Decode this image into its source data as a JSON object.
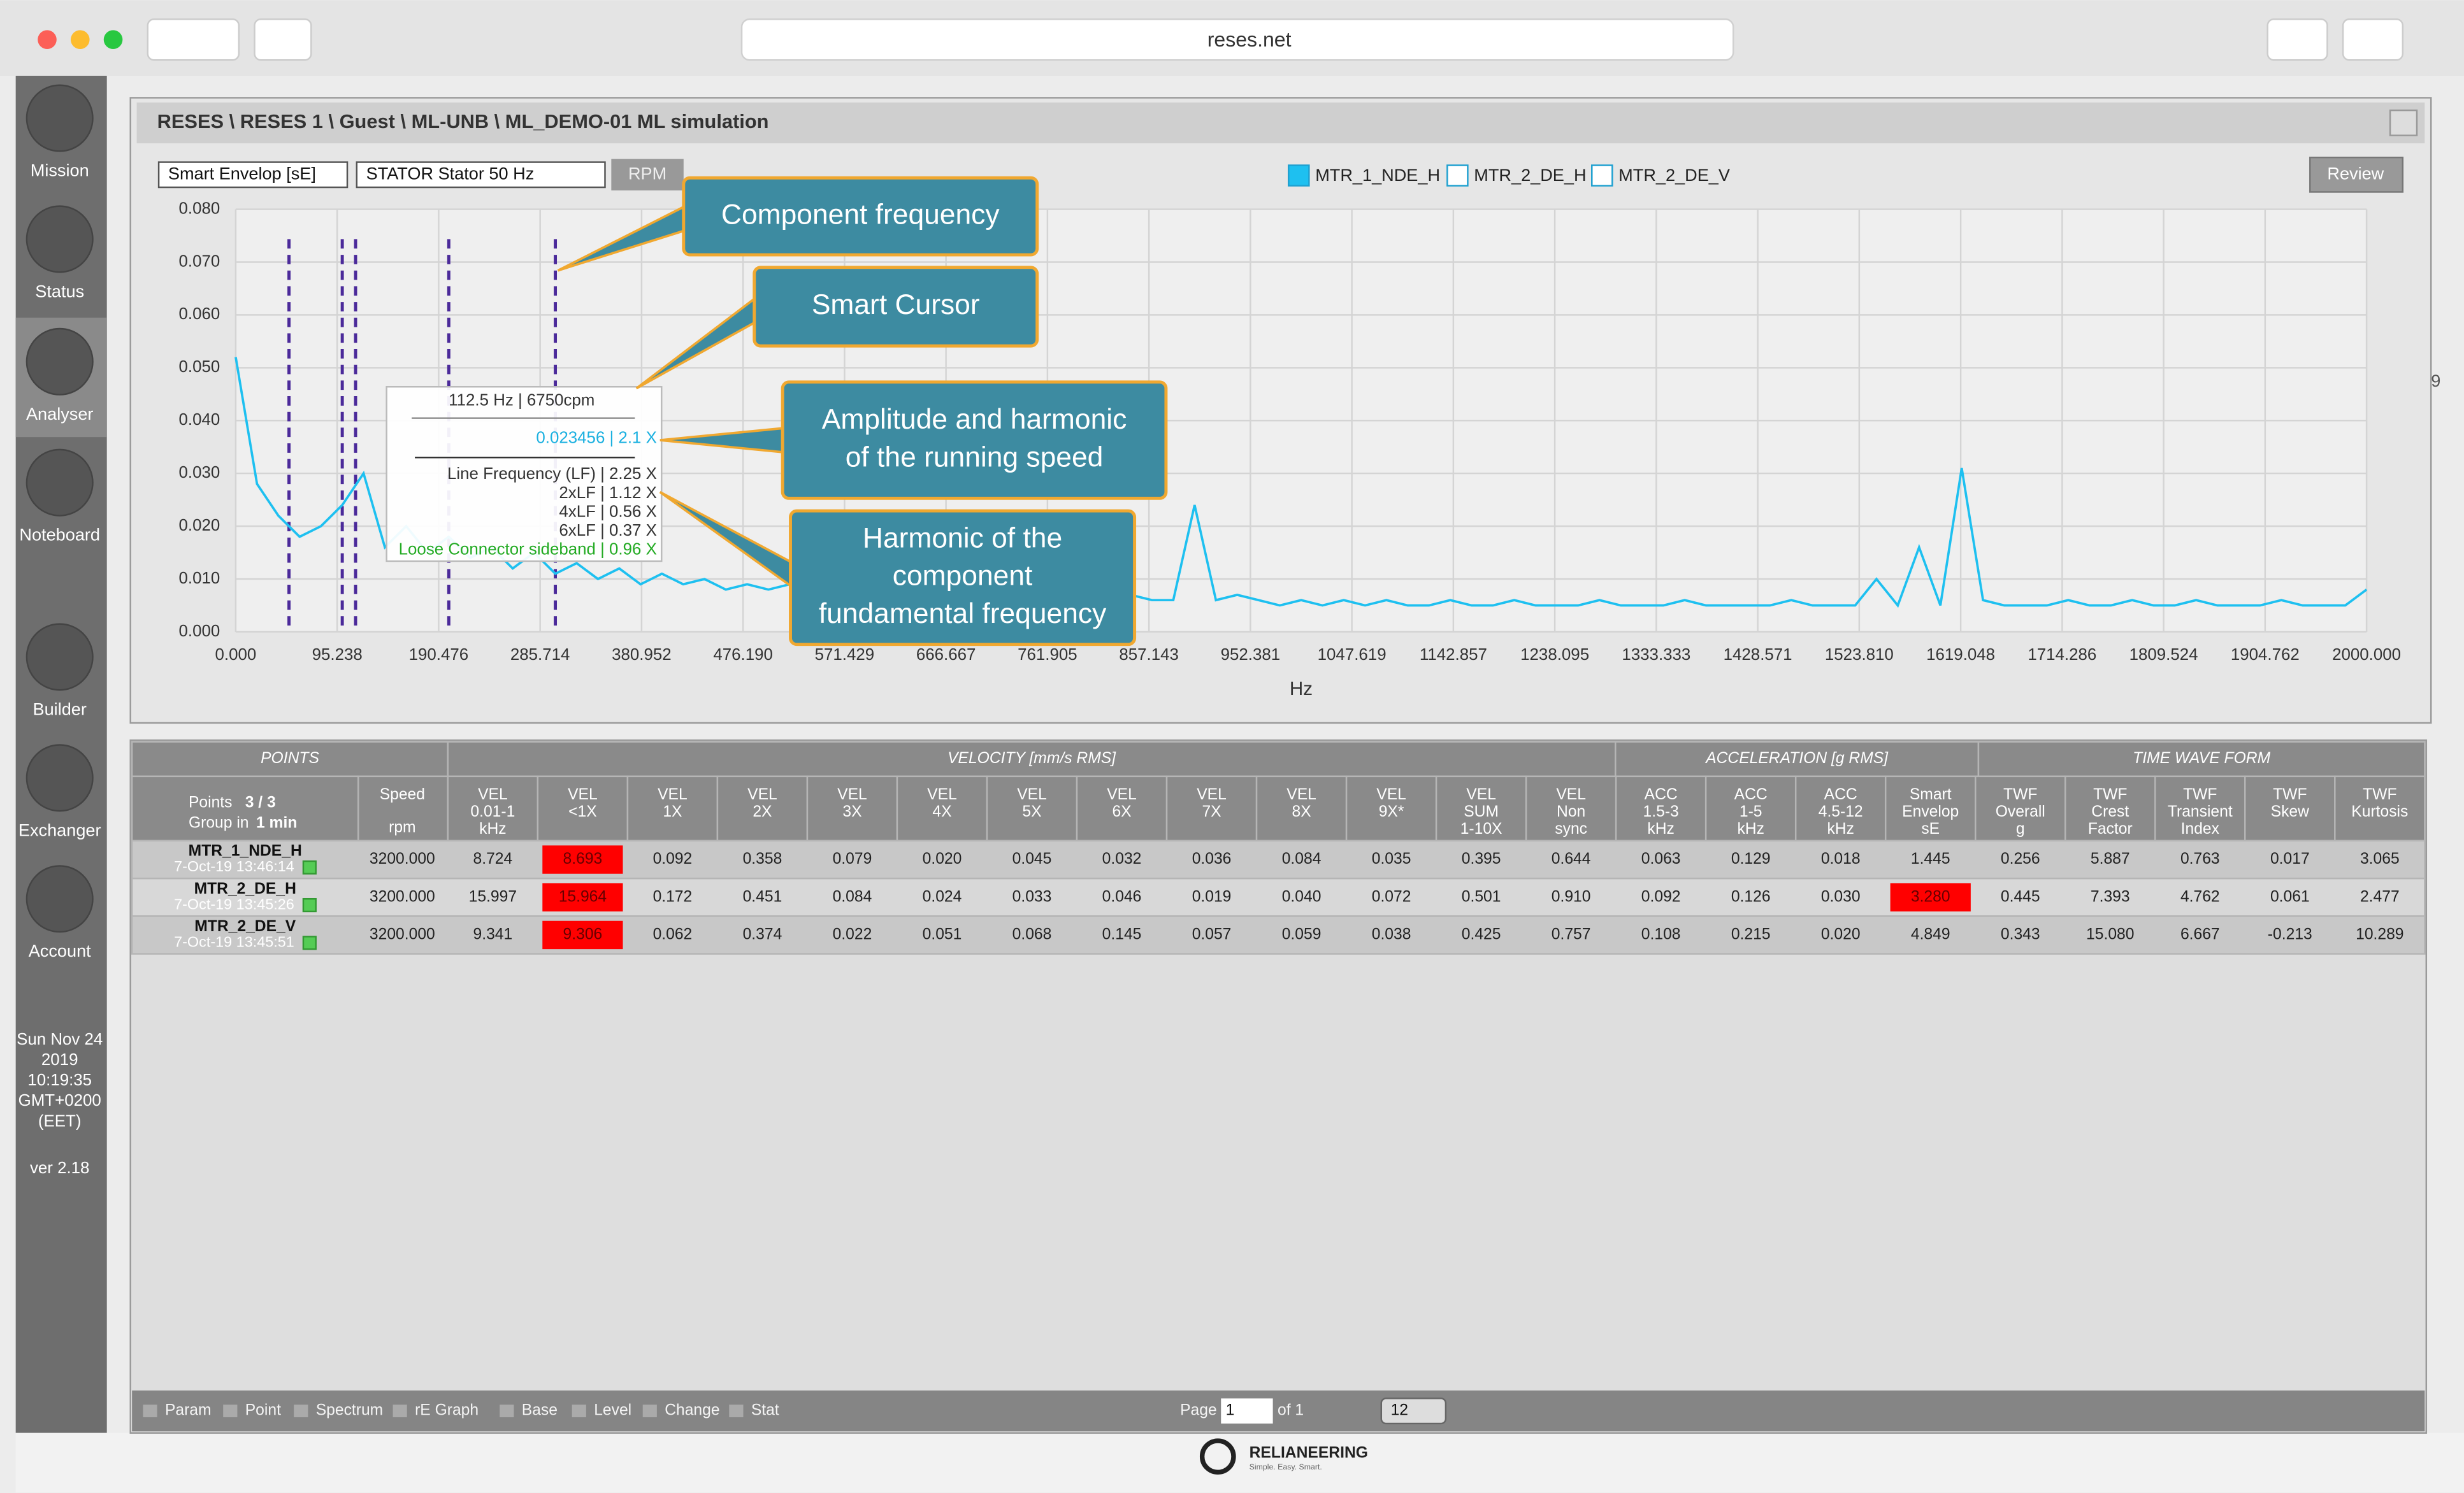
{
  "browser": {
    "url": "reses.net"
  },
  "sidebar": {
    "items": [
      "Mission",
      "Status",
      "Analyser",
      "Noteboard",
      "Builder",
      "Exchanger",
      "Account"
    ],
    "clock": [
      "Sun Nov 24",
      "2019",
      "10:19:35",
      "GMT+0200",
      "(EET)"
    ],
    "version": "ver 2.18"
  },
  "panel": {
    "title": "RESES \\ RESES 1 \\ Guest \\ ML-UNB \\ ML_DEMO-01 ML simulation",
    "edge_fragment": "9"
  },
  "controls": {
    "selects": [
      "Smart Envelop [sE]",
      "STATOR Stator 50 Hz"
    ],
    "rpm_button": "RPM",
    "review_button": "Review",
    "channels": [
      {
        "name": "MTR_1_NDE_H",
        "checked": true
      },
      {
        "name": "MTR_2_DE_H",
        "checked": false
      },
      {
        "name": "MTR_2_DE_V",
        "checked": false
      }
    ]
  },
  "chart_data": {
    "type": "line",
    "xlabel": "Hz",
    "grid": true,
    "xlim": [
      0,
      2000
    ],
    "xticks": [
      {
        "value": 0,
        "label": "0.000"
      },
      95.238,
      190.476,
      285.714,
      380.952,
      {
        "value": 476.19,
        "label": "476.190"
      },
      571.429,
      666.667,
      761.905,
      857.143,
      952.381,
      1047.619,
      1142.857,
      1238.095,
      1333.333,
      1428.571,
      {
        "value": 1523.81,
        "label": "1523.810"
      },
      1619.048,
      1714.286,
      1809.524,
      1904.762,
      {
        "value": 2000,
        "label": "2000.000"
      }
    ],
    "ylim": [
      0,
      0.08
    ],
    "yticks": [
      {
        "value": 0,
        "label": "0.000"
      },
      {
        "value": 0.01,
        "label": "0.010"
      },
      {
        "value": 0.02,
        "label": "0.020"
      },
      {
        "value": 0.03,
        "label": "0.030"
      },
      {
        "value": 0.04,
        "label": "0.040"
      },
      {
        "value": 0.05,
        "label": "0.050"
      },
      {
        "value": 0.06,
        "label": "0.060"
      },
      {
        "value": 0.07,
        "label": "0.070"
      },
      {
        "value": 0.08,
        "label": "0.080"
      }
    ],
    "series": [
      {
        "color": "#1ec0f0",
        "x": [
          0,
          20,
          40,
          60,
          80,
          100,
          120,
          140,
          160,
          180,
          200,
          220,
          240,
          260,
          280,
          300,
          320,
          340,
          360,
          380,
          400,
          420,
          440,
          460,
          480,
          500,
          520,
          540,
          560,
          580,
          600,
          620,
          640,
          660,
          680,
          700,
          720,
          740,
          760,
          780,
          800,
          820,
          840,
          860,
          880,
          900,
          920,
          940,
          960,
          980,
          1000,
          1020,
          1040,
          1060,
          1080,
          1100,
          1120,
          1140,
          1160,
          1180,
          1200,
          1220,
          1240,
          1260,
          1280,
          1300,
          1320,
          1340,
          1360,
          1380,
          1400,
          1420,
          1440,
          1460,
          1480,
          1500,
          1520,
          1540,
          1560,
          1580,
          1600,
          1620,
          1640,
          1660,
          1680,
          1700,
          1720,
          1740,
          1760,
          1780,
          1800,
          1820,
          1840,
          1860,
          1880,
          1900,
          1920,
          1940,
          1960,
          1980,
          2000
        ],
        "values": [
          0.052,
          0.028,
          0.022,
          0.018,
          0.02,
          0.024,
          0.03,
          0.016,
          0.02,
          0.015,
          0.018,
          0.014,
          0.016,
          0.012,
          0.015,
          0.011,
          0.013,
          0.01,
          0.012,
          0.009,
          0.011,
          0.009,
          0.01,
          0.008,
          0.009,
          0.008,
          0.009,
          0.007,
          0.008,
          0.007,
          0.008,
          0.007,
          0.009,
          0.007,
          0.008,
          0.006,
          0.007,
          0.006,
          0.007,
          0.006,
          0.007,
          0.006,
          0.007,
          0.006,
          0.006,
          0.024,
          0.006,
          0.007,
          0.006,
          0.005,
          0.006,
          0.005,
          0.006,
          0.005,
          0.006,
          0.005,
          0.005,
          0.006,
          0.005,
          0.005,
          0.006,
          0.005,
          0.005,
          0.005,
          0.006,
          0.005,
          0.005,
          0.005,
          0.006,
          0.005,
          0.005,
          0.005,
          0.005,
          0.006,
          0.005,
          0.005,
          0.005,
          0.01,
          0.005,
          0.016,
          0.005,
          0.031,
          0.006,
          0.005,
          0.005,
          0.005,
          0.006,
          0.005,
          0.005,
          0.006,
          0.005,
          0.005,
          0.006,
          0.005,
          0.005,
          0.005,
          0.006,
          0.005,
          0.005,
          0.005,
          0.008
        ]
      }
    ],
    "cursor_lines": {
      "color": "#4b2a9a",
      "x": [
        50,
        100,
        112.5,
        200,
        300
      ]
    }
  },
  "tooltip": {
    "header": "112.5 Hz | 6750cpm",
    "amplitude": "0.023456 | 2.1 X",
    "lines": [
      "Line Frequency (LF) | 2.25 X",
      "2xLF | 1.12 X",
      "4xLF | 0.56 X",
      "6xLF | 0.37 X"
    ],
    "sideband": "Loose Connector sideband | 0.96 X"
  },
  "callouts": [
    {
      "lines": [
        "Component frequency"
      ]
    },
    {
      "lines": [
        "Smart Cursor"
      ]
    },
    {
      "lines": [
        "Amplitude and harmonic",
        "of the running speed"
      ]
    },
    {
      "lines": [
        "Harmonic of  the",
        "component",
        "fundamental frequency"
      ]
    }
  ],
  "table": {
    "groups": [
      "POINTS",
      "VELOCITY [mm/s RMS]",
      "ACCELERATION [g RMS]",
      "TIME WAVE FORM"
    ],
    "points_header": [
      "Points",
      "3 / 3",
      "Group in",
      "1 min"
    ],
    "speed_header": [
      "Speed",
      "rpm"
    ],
    "columns": [
      [
        "VEL",
        "0.01-1",
        "kHz"
      ],
      [
        "VEL",
        "<1X"
      ],
      [
        "VEL",
        "1X"
      ],
      [
        "VEL",
        "2X"
      ],
      [
        "VEL",
        "3X"
      ],
      [
        "VEL",
        "4X"
      ],
      [
        "VEL",
        "5X"
      ],
      [
        "VEL",
        "6X"
      ],
      [
        "VEL",
        "7X"
      ],
      [
        "VEL",
        "8X"
      ],
      [
        "VEL",
        "9X*"
      ],
      [
        "VEL",
        "SUM",
        "1-10X"
      ],
      [
        "VEL",
        "Non",
        "sync"
      ],
      [
        "ACC",
        "1.5-3",
        "kHz"
      ],
      [
        "ACC",
        "1-5",
        "kHz"
      ],
      [
        "ACC",
        "4.5-12",
        "kHz"
      ],
      [
        "Smart",
        "Envelop",
        "sE"
      ],
      [
        "TWF",
        "Overall",
        "g"
      ],
      [
        "TWF",
        "Crest",
        "Factor"
      ],
      [
        "TWF",
        "Transient",
        "Index"
      ],
      [
        "TWF",
        "Skew"
      ],
      [
        "TWF",
        "Kurtosis"
      ]
    ],
    "rows": [
      {
        "name": "MTR_1_NDE_H",
        "date": "7-Oct-19 13:46:14",
        "speed": "3200.000",
        "values": [
          "8.724",
          "8.693",
          "0.092",
          "0.358",
          "0.079",
          "0.020",
          "0.045",
          "0.032",
          "0.036",
          "0.084",
          "0.035",
          "0.395",
          "0.644",
          "0.063",
          "0.129",
          "0.018",
          "1.445",
          "0.256",
          "5.887",
          "0.763",
          "0.017",
          "3.065"
        ],
        "alerts": [
          1
        ]
      },
      {
        "name": "MTR_2_DE_H",
        "date": "7-Oct-19 13:45:26",
        "speed": "3200.000",
        "values": [
          "15.997",
          "15.964",
          "0.172",
          "0.451",
          "0.084",
          "0.024",
          "0.033",
          "0.046",
          "0.019",
          "0.040",
          "0.072",
          "0.501",
          "0.910",
          "0.092",
          "0.126",
          "0.030",
          "3.280",
          "0.445",
          "7.393",
          "4.762",
          "0.061",
          "2.477"
        ],
        "alerts": [
          1,
          16
        ]
      },
      {
        "name": "MTR_2_DE_V",
        "date": "7-Oct-19 13:45:51",
        "speed": "3200.000",
        "values": [
          "9.341",
          "9.306",
          "0.062",
          "0.374",
          "0.022",
          "0.051",
          "0.068",
          "0.145",
          "0.057",
          "0.059",
          "0.038",
          "0.425",
          "0.757",
          "0.108",
          "0.215",
          "0.020",
          "4.849",
          "0.343",
          "15.080",
          "6.667",
          "-0.213",
          "10.289"
        ],
        "alerts": [
          1
        ]
      }
    ]
  },
  "footer": {
    "tools": [
      "Param",
      "Point",
      "Spectrum",
      "rE Graph",
      "Base",
      "Level",
      "Change",
      "Stat"
    ],
    "page_label": "Page",
    "page": "1",
    "of": "of 1",
    "per_page": "12"
  },
  "logo": {
    "name": "RELIANEERING",
    "tagline": "Simple. Easy. Smart."
  }
}
